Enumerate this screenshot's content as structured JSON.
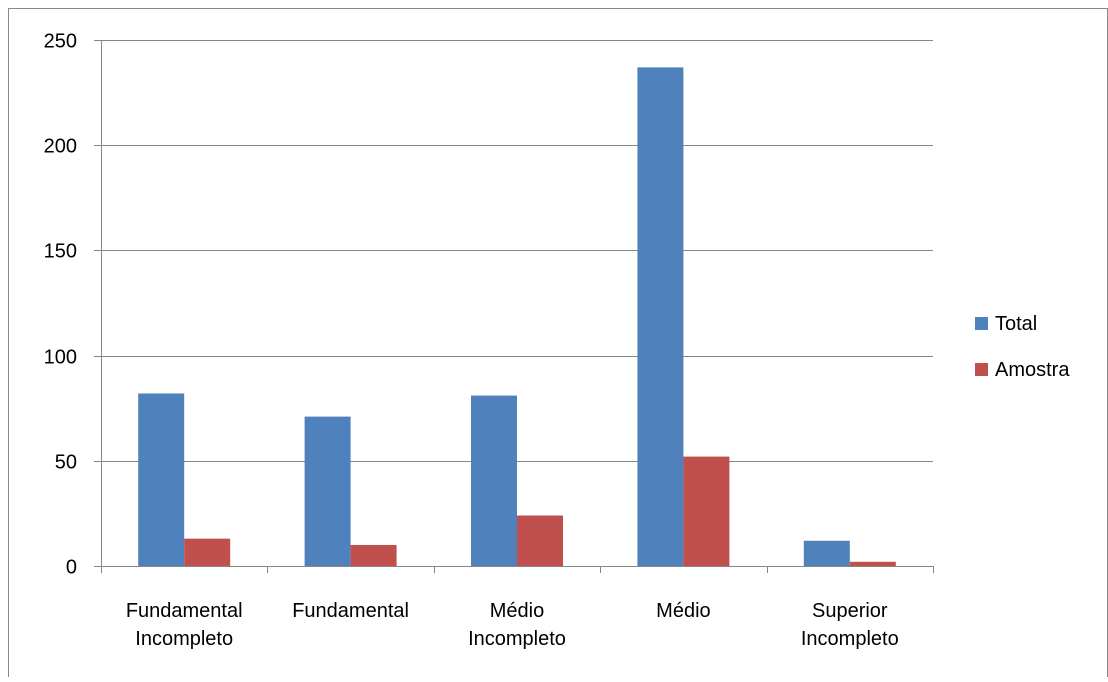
{
  "chart_data": {
    "type": "bar",
    "categories": [
      [
        "Fundamental",
        "Incompleto"
      ],
      [
        "Fundamental"
      ],
      [
        "Médio",
        "Incompleto"
      ],
      [
        "Médio"
      ],
      [
        "Superior",
        "Incompleto"
      ]
    ],
    "series": [
      {
        "name": "Total",
        "color": "#4f81bd",
        "values": [
          82,
          71,
          81,
          237,
          12
        ]
      },
      {
        "name": "Amostra",
        "color": "#c0504d",
        "values": [
          13,
          10,
          24,
          52,
          2
        ]
      }
    ],
    "title": "",
    "xlabel": "",
    "ylabel": "",
    "ylim": [
      0,
      250
    ],
    "yticks": [
      0,
      50,
      100,
      150,
      200,
      250
    ],
    "grid": true,
    "legend_position": "right"
  }
}
